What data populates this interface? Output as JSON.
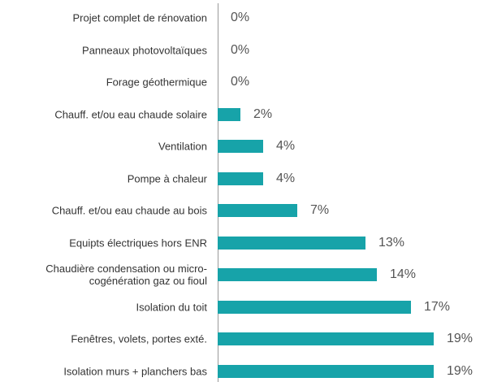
{
  "chart_data": {
    "type": "bar",
    "orientation": "horizontal",
    "categories": [
      "Projet complet de rénovation",
      "Panneaux photovoltaïques",
      "Forage géothermique",
      "Chauff. et/ou eau chaude solaire",
      "Ventilation",
      "Pompe à chaleur",
      "Chauff. et/ou eau chaude au bois",
      "Equipts électriques hors ENR",
      "Chaudière condensation ou micro-\ncogénération gaz ou fioul",
      "Isolation du toit",
      "Fenêtres, volets, portes exté.",
      "Isolation murs + planchers bas"
    ],
    "values": [
      0,
      0,
      0,
      2,
      4,
      4,
      7,
      13,
      14,
      17,
      19,
      19
    ],
    "value_labels": [
      "0%",
      "0%",
      "0%",
      "2%",
      "4%",
      "4%",
      "7%",
      "13%",
      "14%",
      "17%",
      "19%",
      "19%"
    ],
    "color": "#17a3a9",
    "xlim": [
      0,
      23
    ]
  }
}
